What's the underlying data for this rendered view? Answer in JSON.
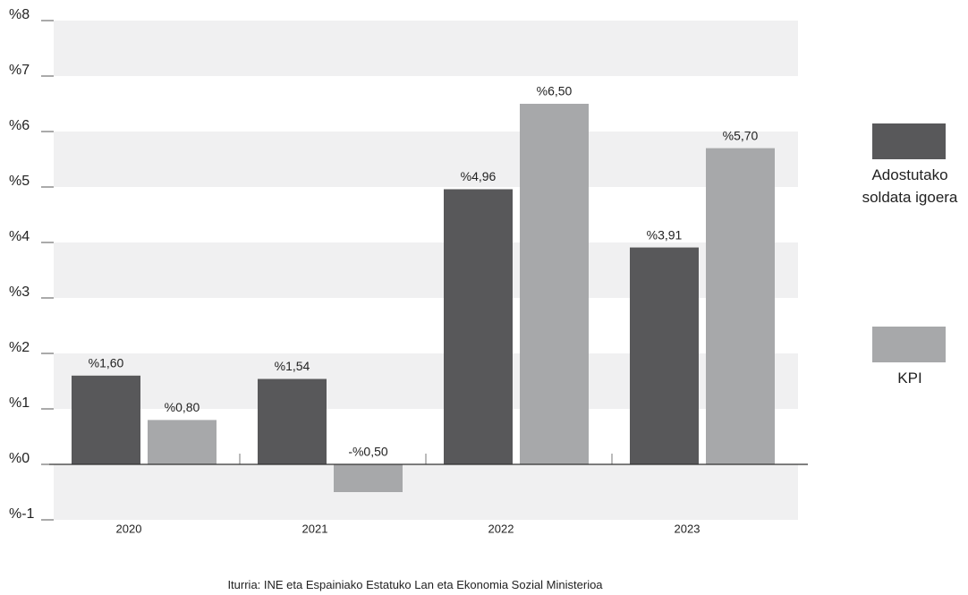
{
  "chart_data": {
    "type": "bar",
    "categories": [
      "2020",
      "2021",
      "2022",
      "2023"
    ],
    "series": [
      {
        "name": "Adostutako soldata igoera",
        "color": "#58585a",
        "values": [
          1.6,
          1.54,
          4.96,
          3.91
        ],
        "value_labels": [
          "%1,60",
          "%1,54",
          "%4,96",
          "%3,91"
        ]
      },
      {
        "name": "KPI",
        "color": "#a7a8aa",
        "values": [
          0.8,
          -0.5,
          6.5,
          5.7
        ],
        "value_labels": [
          "%0,80",
          "-%0,50",
          "%6,50",
          "%5,70"
        ]
      }
    ],
    "ylim": [
      -1,
      8
    ],
    "yticks": [
      {
        "value": -1,
        "label": "%-1"
      },
      {
        "value": 0,
        "label": "%0"
      },
      {
        "value": 1,
        "label": "%1"
      },
      {
        "value": 2,
        "label": "%2"
      },
      {
        "value": 3,
        "label": "%3"
      },
      {
        "value": 4,
        "label": "%4"
      },
      {
        "value": 5,
        "label": "%5"
      },
      {
        "value": 6,
        "label": "%6"
      },
      {
        "value": 7,
        "label": "%7"
      },
      {
        "value": 8,
        "label": "%8"
      }
    ],
    "grid": true,
    "legend": "right",
    "source": "Iturria: INE eta Espainiako Estatuko Lan eta Ekonomia Sozial Ministerioa"
  }
}
